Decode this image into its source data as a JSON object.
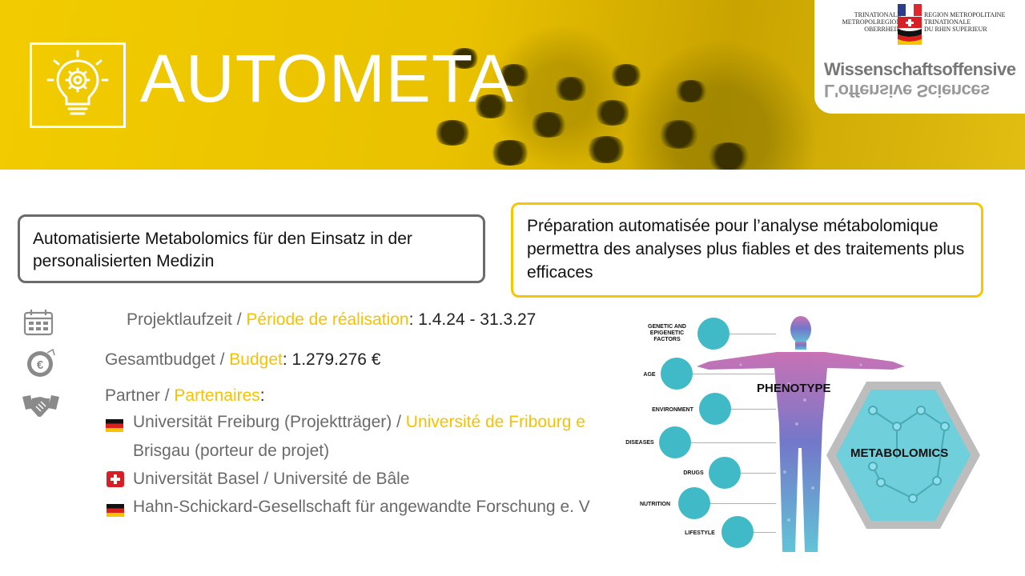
{
  "header": {
    "title": "AUTOMETA"
  },
  "org_logo": {
    "left_lines": [
      "TRINATIONALE",
      "METROPOLREGION",
      "OBERRHEIN"
    ],
    "right_lines": [
      "REGION METROPOLITAINE",
      "TRINATIONALE",
      "DU RHIN SUPERIEUR"
    ],
    "wordmark": "Wissenschaftsoffensive",
    "wordmark_mirror": "L'offensive Sciences"
  },
  "summary": {
    "de": "Automatisierte Metabolomics für den Einsatz in der personalisierten Medizin",
    "fr": "Préparation automatisée pour l’analyse métabolomique permettra des analyses plus fiables et des traitements plus efficaces"
  },
  "info": {
    "period": {
      "label_de": "Projektlaufzeit",
      "sep": " / ",
      "label_fr": "Période de réalisation",
      "value": ": 1.4.24 - 31.3.27"
    },
    "budget": {
      "label_de": "Gesamtbudget",
      "sep": " / ",
      "label_fr": "Budget",
      "value": ": 1.279.276 €"
    },
    "partners": {
      "label_de": "Partner",
      "sep": " / ",
      "label_fr": "Partenaires",
      "value": ":"
    }
  },
  "partners": [
    {
      "country": "germany",
      "de": "Universität Freiburg (Projektträger)",
      "sep": " / ",
      "fr_line1": "Université de Fribourg e",
      "fr_line2": "Brisgau (porteur de projet)"
    },
    {
      "country": "switzerland",
      "text": "Universität Basel / Université de Bâle"
    },
    {
      "country": "germany",
      "text": "Hahn-Schickard-Gesellschaft für angewandte Forschung e. V"
    }
  ],
  "illustration": {
    "factors": [
      "GENETIC AND EPIGENETIC FACTORS",
      "AGE",
      "ENVIRONMENT",
      "DISEASES",
      "DRUGS",
      "NUTRITION",
      "LIFESTYLE"
    ],
    "phenotype": "PHENOTYPE",
    "metabolomics": "METABOLOMICS"
  },
  "colors": {
    "accent": "#f6c200",
    "banner": "#e9c100",
    "gray_text": "#6a6a6a",
    "teal": "#3fbac6"
  },
  "icons": [
    "lightbulb-gear-icon",
    "calendar-icon",
    "euro-icon",
    "handshake-icon",
    "germany-flag-icon",
    "switzerland-flag-icon"
  ]
}
